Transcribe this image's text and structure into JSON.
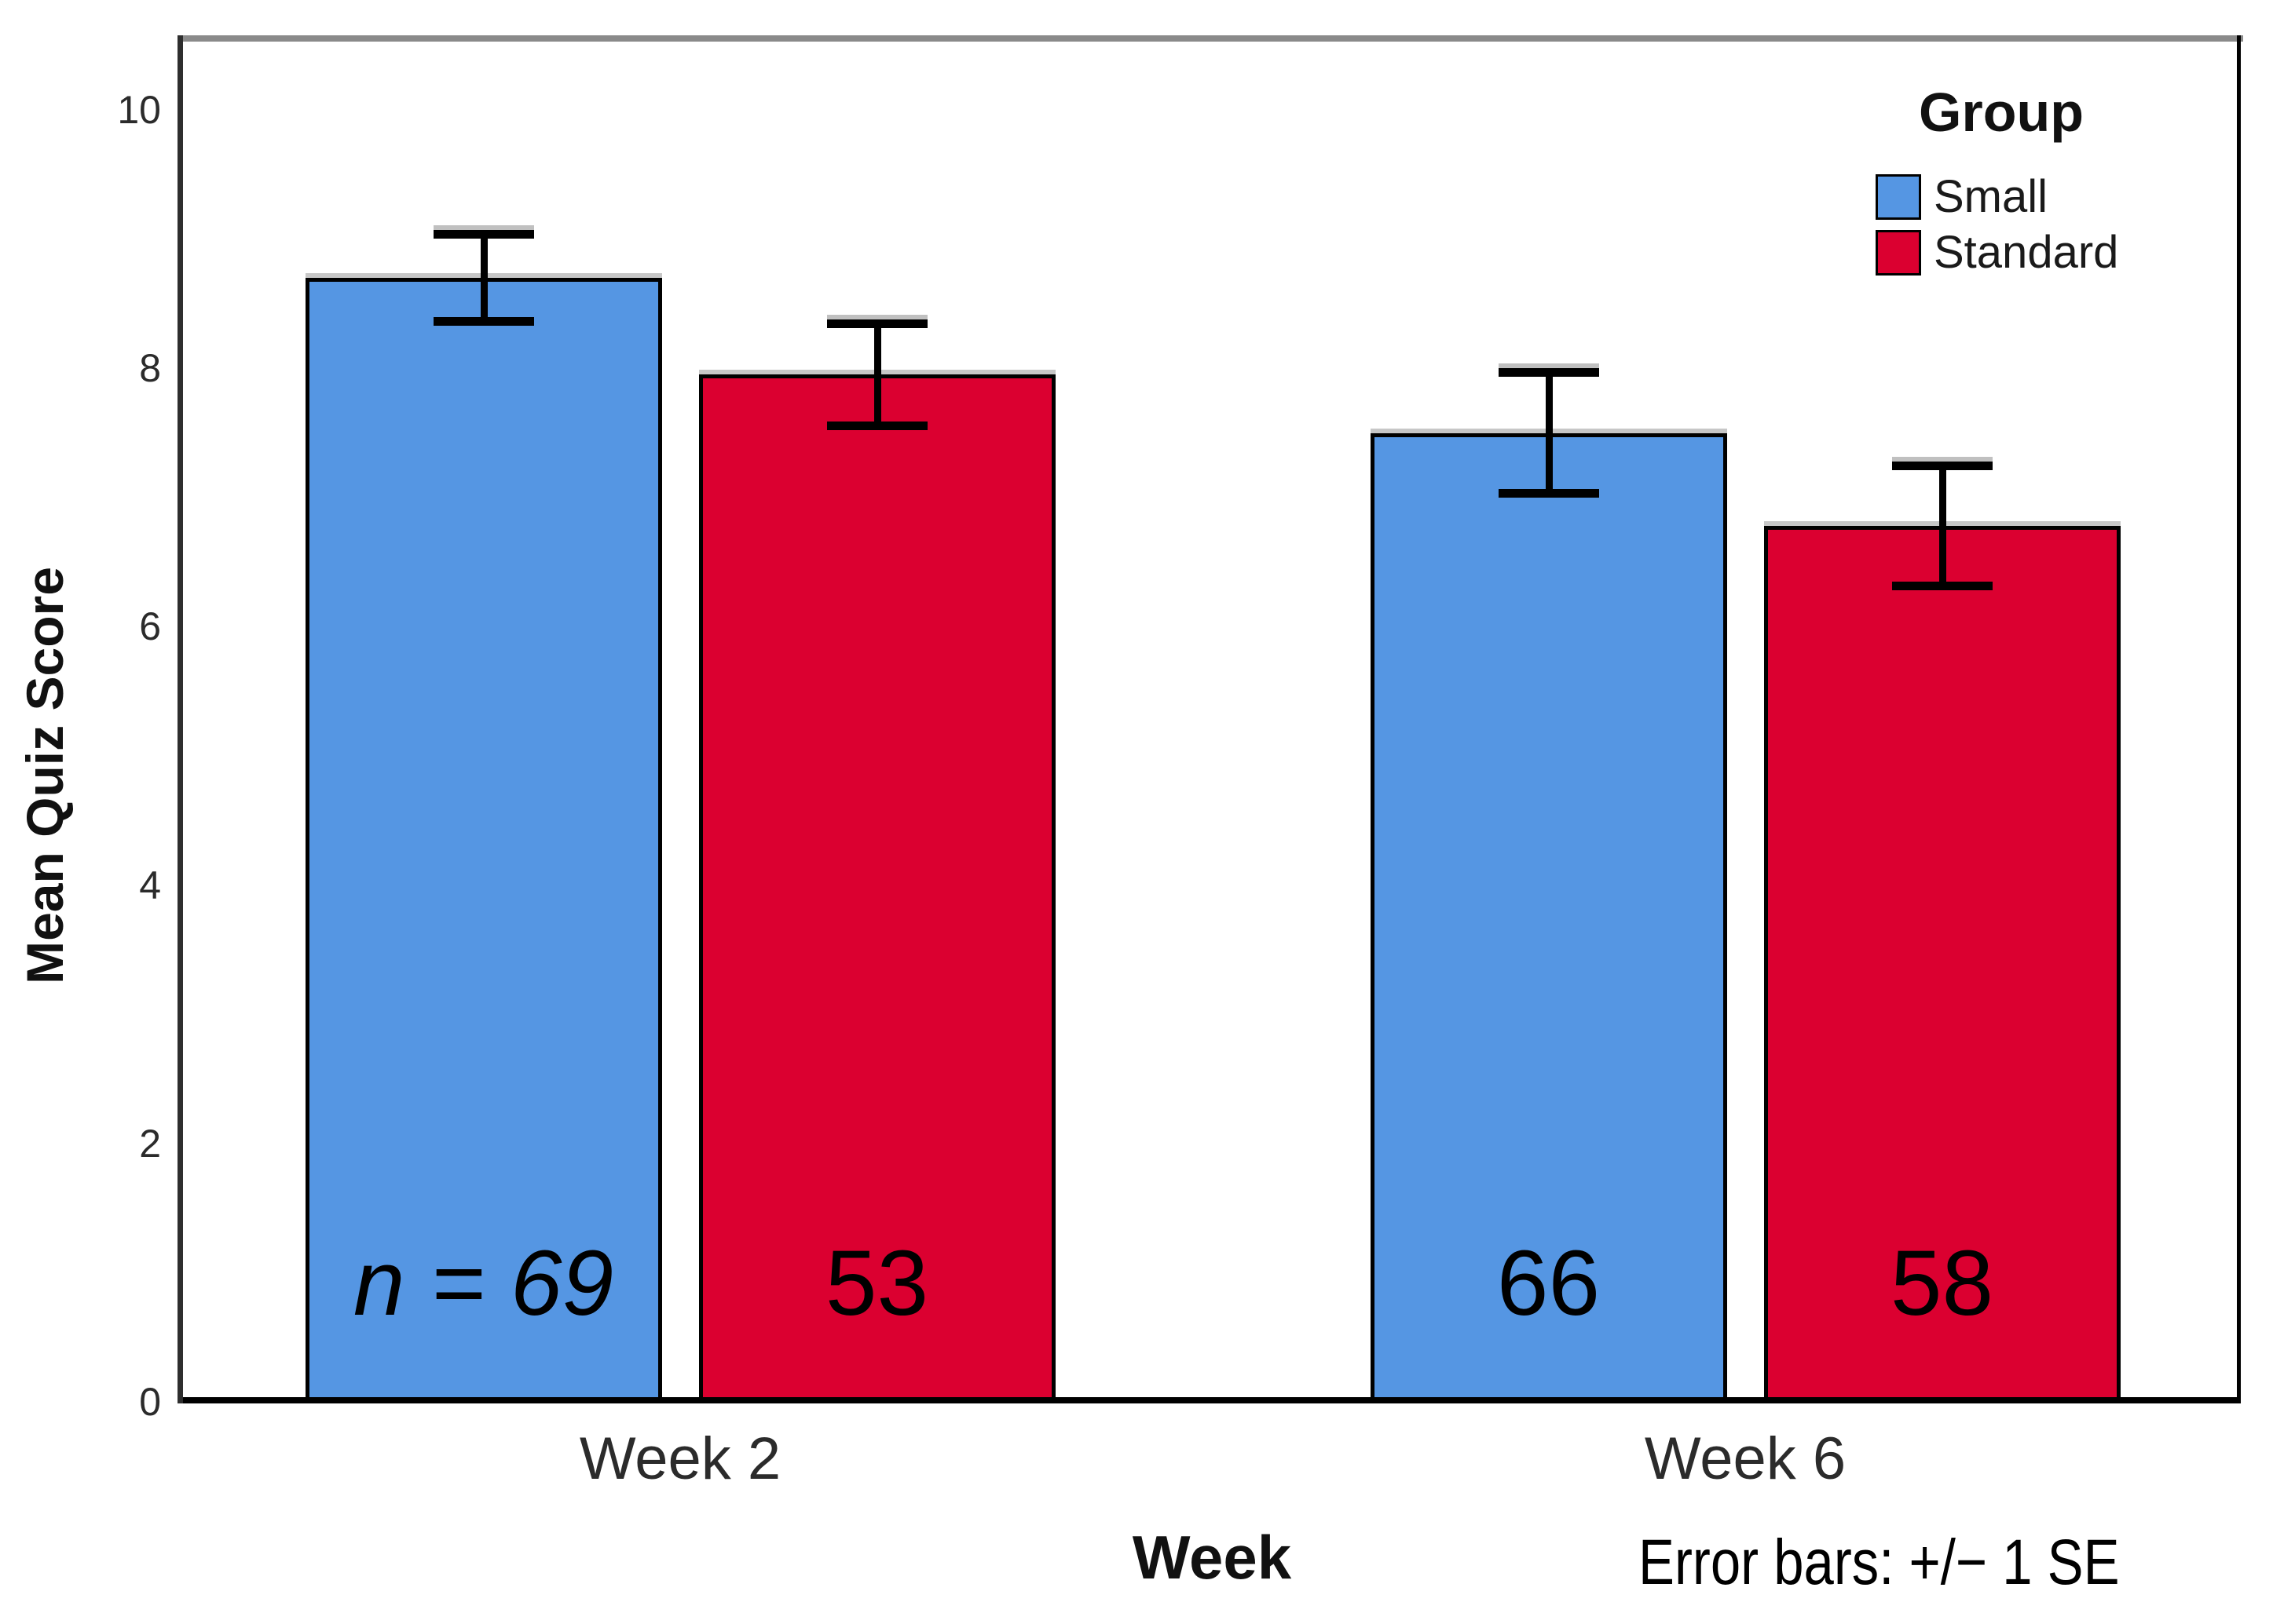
{
  "chart_data": {
    "type": "bar",
    "categories": [
      "Week 2",
      "Week 6"
    ],
    "series": [
      {
        "name": "Small",
        "color": "#5596E3",
        "values": [
          8.7,
          7.5
        ],
        "se": [
          0.37,
          0.5
        ],
        "n": [
          69,
          66
        ]
      },
      {
        "name": "Standard",
        "color": "#DB0030",
        "values": [
          7.95,
          6.78
        ],
        "se": [
          0.43,
          0.5
        ],
        "n": [
          53,
          58
        ]
      }
    ],
    "bar_annotations": [
      {
        "text": "n = 69",
        "italic": true
      },
      {
        "text": "53",
        "italic": false
      },
      {
        "text": "66",
        "italic": false
      },
      {
        "text": "58",
        "italic": false
      }
    ],
    "xlabel": "Week",
    "ylabel": "Mean Quiz Score",
    "ylim": [
      0,
      10
    ],
    "yticks": [
      0,
      2,
      4,
      6,
      8,
      10
    ],
    "grid": false,
    "legend_title": "Group",
    "legend_position": "top-right-inside",
    "error_note": "Error bars: +/− 1 SE"
  }
}
